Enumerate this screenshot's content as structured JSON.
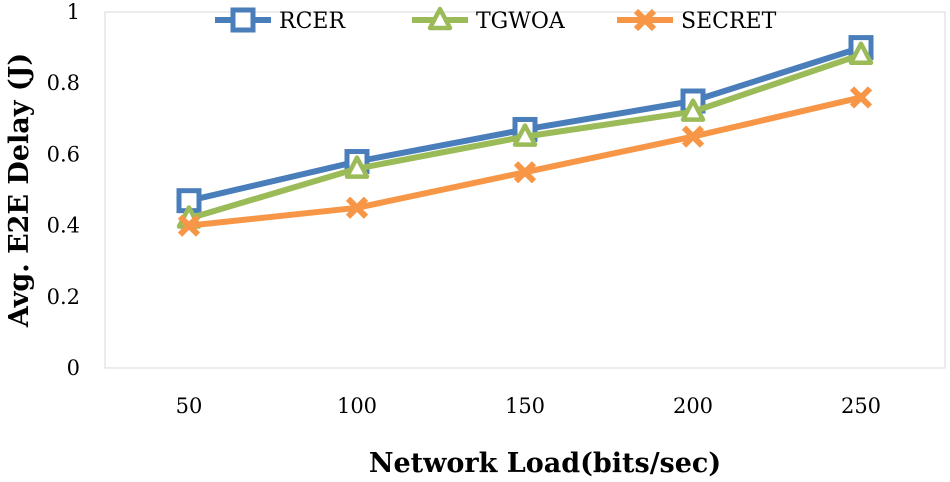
{
  "chart_data": {
    "type": "line",
    "title": "",
    "xlabel": "Network Load(bits/sec)",
    "ylabel": "Avg. E2E Delay (J)",
    "categories": [
      "50",
      "100",
      "150",
      "200",
      "250"
    ],
    "ylim": [
      0,
      1
    ],
    "yticks": [
      "0",
      "0.2",
      "0.4",
      "0.6",
      "0.8",
      "1"
    ],
    "legend_position": "top",
    "grid": false,
    "series": [
      {
        "name": "RCER",
        "marker": "square",
        "color": "#4A7EBB",
        "values": [
          0.47,
          0.58,
          0.67,
          0.75,
          0.9
        ]
      },
      {
        "name": "TGWOA",
        "marker": "triangle",
        "color": "#9BBB59",
        "values": [
          0.42,
          0.56,
          0.65,
          0.72,
          0.88
        ]
      },
      {
        "name": "SECRET",
        "marker": "x",
        "color": "#F79646",
        "values": [
          0.4,
          0.45,
          0.55,
          0.65,
          0.76
        ]
      }
    ]
  }
}
